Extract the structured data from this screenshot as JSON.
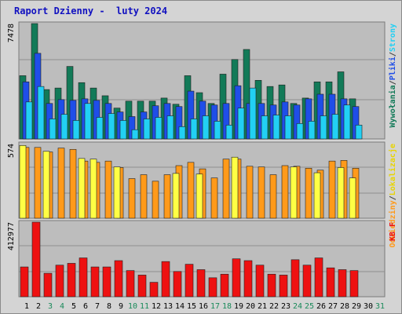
{
  "title": "Raport Dzienny -  luty 2024",
  "colors": {
    "frame": "#d4d4d4",
    "plot_bg": "#bdbdbd",
    "title": "#1010c0",
    "visits": "#127a58",
    "pages": "#1f4ee8",
    "files": "#22d0f4",
    "hosts": "#ffff44",
    "visits_orange": "#ff9a1a",
    "kb": "#ee1111",
    "weekend_label": "#1a8a5a"
  },
  "chart_data": [
    {
      "type": "bar",
      "name": "top",
      "ytick_label": "7478",
      "ylim": [
        0,
        7478
      ],
      "legend": [
        {
          "text": "Wywołania",
          "color": "#127a58"
        },
        {
          "text": "/",
          "color": "#404040"
        },
        {
          "text": "Pliki",
          "color": "#1f4ee8"
        },
        {
          "text": "/",
          "color": "#404040"
        },
        {
          "text": "Strony",
          "color": "#22d0f4"
        }
      ],
      "series": [
        {
          "key": "hits",
          "color": "#127a58",
          "values": [
            4100,
            7478,
            3200,
            3300,
            4700,
            3650,
            3300,
            2800,
            2000,
            2450,
            2450,
            2450,
            2650,
            2250,
            4100,
            3000,
            2300,
            4200,
            5150,
            5800,
            3800,
            3400,
            3500,
            2300,
            2650,
            3700,
            3700,
            4350,
            2600
          ]
        },
        {
          "key": "files",
          "color": "#1f4ee8",
          "values": [
            3700,
            5550,
            2300,
            2550,
            2500,
            2600,
            2500,
            2300,
            1750,
            1450,
            1750,
            2150,
            2300,
            2100,
            3100,
            2450,
            2200,
            2300,
            3450,
            2300,
            2300,
            2200,
            2400,
            2200,
            2600,
            2900,
            2900,
            2600,
            2100
          ]
        },
        {
          "key": "pages",
          "color": "#22d0f4",
          "values": [
            2400,
            3400,
            1300,
            1600,
            1200,
            2300,
            1400,
            1650,
            1200,
            600,
            1300,
            1400,
            1500,
            800,
            1300,
            1500,
            1150,
            900,
            2000,
            3300,
            1500,
            1550,
            1500,
            1000,
            1150,
            1500,
            1600,
            2200,
            900
          ]
        }
      ]
    },
    {
      "type": "bar",
      "name": "middle",
      "ytick_label": "574",
      "ylim": [
        0,
        574
      ],
      "legend": [
        {
          "text": "Odwiedziny",
          "color": "#ff9a1a"
        },
        {
          "text": "/",
          "color": "#404040"
        },
        {
          "text": "Lokalizacje",
          "color": "#e8d400"
        }
      ],
      "series": [
        {
          "key": "visits",
          "color": "#ff9a1a",
          "values": [
            545,
            545,
            510,
            540,
            530,
            440,
            430,
            440,
            390,
            305,
            335,
            285,
            335,
            405,
            430,
            380,
            310,
            455,
            455,
            400,
            395,
            335,
            405,
            400,
            385,
            370,
            440,
            445,
            385
          ]
        },
        {
          "key": "hosts",
          "color": "#ffff44",
          "values": [
            560,
            0,
            515,
            0,
            0,
            460,
            455,
            0,
            395,
            0,
            0,
            0,
            0,
            345,
            0,
            340,
            0,
            0,
            470,
            0,
            0,
            0,
            0,
            395,
            0,
            350,
            0,
            390,
            310
          ]
        }
      ]
    },
    {
      "type": "bar",
      "name": "bottom",
      "ytick_label": "412977",
      "ylim": [
        0,
        412977
      ],
      "legend": [
        {
          "text": "KB F",
          "color": "#ee1111"
        }
      ],
      "series": [
        {
          "key": "kbytes",
          "color": "#ee1111",
          "values": [
            165000,
            412977,
            130000,
            175000,
            185000,
            215000,
            165000,
            165000,
            200000,
            145000,
            120000,
            80000,
            195000,
            140000,
            180000,
            150000,
            105000,
            125000,
            210000,
            200000,
            175000,
            125000,
            120000,
            205000,
            175000,
            215000,
            160000,
            150000,
            145000
          ]
        }
      ]
    }
  ],
  "x_axis": {
    "labels": [
      "1",
      "2",
      "3",
      "4",
      "5",
      "6",
      "7",
      "8",
      "9",
      "10",
      "11",
      "12",
      "13",
      "14",
      "15",
      "16",
      "17",
      "18",
      "19",
      "20",
      "21",
      "22",
      "23",
      "24",
      "25",
      "26",
      "27",
      "28",
      "29",
      "30",
      "31"
    ],
    "weekend": [
      "3",
      "4",
      "10",
      "11",
      "17",
      "18",
      "24",
      "25",
      "31"
    ]
  }
}
